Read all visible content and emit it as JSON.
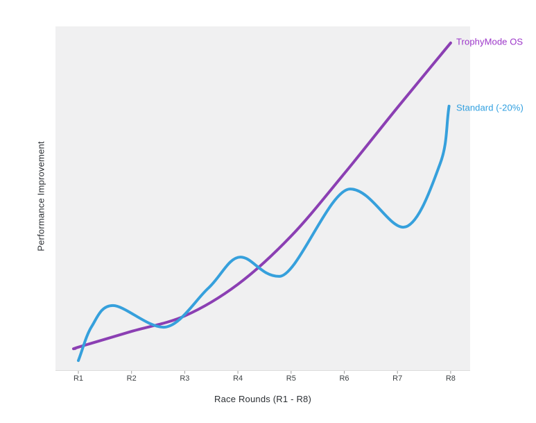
{
  "page": {
    "background": "#ffffff",
    "plot_background": "#f0f0f1",
    "axis_line_color": "#dcdcdc",
    "tick_color": "#9e9e9e",
    "tick_label_color": "#3c4043",
    "axis_title_color": "#2b2f33"
  },
  "chart_data": {
    "type": "line",
    "title": "",
    "xlabel": "Race Rounds (R1 - R8)",
    "ylabel": "Performance Improvement",
    "x_tick_labels": [
      "R1",
      "R2",
      "R3",
      "R4",
      "R5",
      "R6",
      "R7",
      "R8"
    ],
    "x_range_rounds": [
      1,
      8
    ],
    "ylim": [
      0,
      100
    ],
    "y_axis_numeric_labels_shown": false,
    "grid": false,
    "legend_position": "end-of-line-labels-right",
    "series": [
      {
        "name": "TrophyMode OS",
        "color": "#8b3fb3",
        "label_color": "#9c36c9",
        "shape": "smooth accelerating rise",
        "values_at_rounds": [
          7,
          11,
          16,
          25,
          39,
          57,
          76,
          95
        ],
        "points": [
          [
            0.94,
            6.3
          ],
          [
            1,
            6.7
          ],
          [
            2,
            11.3
          ],
          [
            3,
            15.8
          ],
          [
            4,
            25.0
          ],
          [
            5,
            39.0
          ],
          [
            6,
            57.2
          ],
          [
            7,
            76.4
          ],
          [
            8,
            95.2
          ]
        ]
      },
      {
        "name": "Standard (-20%)",
        "color": "#36a0dc",
        "label_color": "#2f9fe0",
        "shape": "oscillating rise with three local peaks and steep final climb",
        "values_at_rounds": [
          3,
          17,
          15,
          33,
          28,
          52,
          42,
          77
        ],
        "points": [
          [
            1.0,
            2.8
          ],
          [
            1.25,
            12.7
          ],
          [
            1.65,
            18.8
          ],
          [
            2.6,
            12.5
          ],
          [
            3.44,
            23.8
          ],
          [
            4.05,
            32.9
          ],
          [
            4.78,
            27.3
          ],
          [
            6.11,
            52.7
          ],
          [
            7.11,
            41.6
          ],
          [
            7.8,
            60.0
          ],
          [
            7.97,
            76.8
          ]
        ]
      }
    ]
  }
}
